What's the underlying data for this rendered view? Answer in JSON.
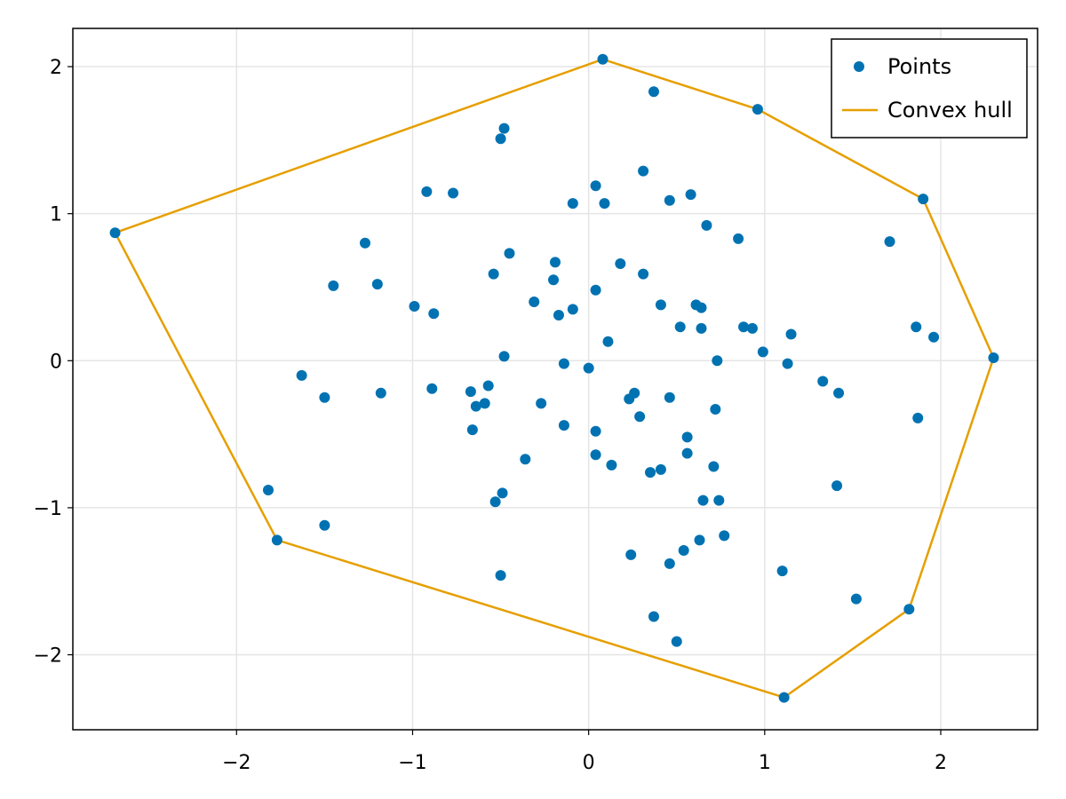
{
  "chart_data": {
    "type": "scatter",
    "title": "",
    "xlabel": "",
    "ylabel": "",
    "xlim": [
      -2.93,
      2.55
    ],
    "ylim": [
      -2.51,
      2.26
    ],
    "xticks": [
      -2,
      -1,
      0,
      1,
      2
    ],
    "yticks": [
      -2,
      -1,
      0,
      1,
      2
    ],
    "xtick_labels": [
      "−2",
      "−1",
      "0",
      "1",
      "2"
    ],
    "ytick_labels": [
      "−2",
      "−1",
      "0",
      "1",
      "2"
    ],
    "grid": true,
    "legend_position": "top-right",
    "colors": {
      "points": "#0072b2",
      "hull": "#e69f00"
    },
    "series": [
      {
        "name": "Points",
        "kind": "scatter",
        "points": [
          [
            0.08,
            2.05
          ],
          [
            0.37,
            1.83
          ],
          [
            0.96,
            1.71
          ],
          [
            -0.48,
            1.58
          ],
          [
            -0.5,
            1.51
          ],
          [
            0.31,
            1.29
          ],
          [
            0.04,
            1.19
          ],
          [
            -0.92,
            1.15
          ],
          [
            -0.77,
            1.14
          ],
          [
            0.58,
            1.13
          ],
          [
            -0.09,
            1.07
          ],
          [
            0.09,
            1.07
          ],
          [
            0.46,
            1.09
          ],
          [
            1.9,
            1.1
          ],
          [
            0.67,
            0.92
          ],
          [
            -2.69,
            0.87
          ],
          [
            0.85,
            0.83
          ],
          [
            1.71,
            0.81
          ],
          [
            -1.27,
            0.8
          ],
          [
            -0.45,
            0.73
          ],
          [
            -0.19,
            0.67
          ],
          [
            0.18,
            0.66
          ],
          [
            -0.54,
            0.59
          ],
          [
            0.31,
            0.59
          ],
          [
            -0.2,
            0.55
          ],
          [
            -1.45,
            0.51
          ],
          [
            -1.2,
            0.52
          ],
          [
            0.04,
            0.48
          ],
          [
            -0.31,
            0.4
          ],
          [
            0.41,
            0.38
          ],
          [
            0.61,
            0.38
          ],
          [
            0.64,
            0.36
          ],
          [
            -0.99,
            0.37
          ],
          [
            -0.09,
            0.35
          ],
          [
            -0.17,
            0.31
          ],
          [
            -0.88,
            0.32
          ],
          [
            0.52,
            0.23
          ],
          [
            0.64,
            0.22
          ],
          [
            0.88,
            0.23
          ],
          [
            0.93,
            0.22
          ],
          [
            1.86,
            0.23
          ],
          [
            1.15,
            0.18
          ],
          [
            1.96,
            0.16
          ],
          [
            0.11,
            0.13
          ],
          [
            0.99,
            0.06
          ],
          [
            2.3,
            0.02
          ],
          [
            -0.48,
            0.03
          ],
          [
            0.73,
            0.0
          ],
          [
            -0.14,
            -0.02
          ],
          [
            1.13,
            -0.02
          ],
          [
            0.0,
            -0.05
          ],
          [
            -1.63,
            -0.1
          ],
          [
            1.33,
            -0.14
          ],
          [
            -0.57,
            -0.17
          ],
          [
            -0.89,
            -0.19
          ],
          [
            -0.67,
            -0.21
          ],
          [
            -1.18,
            -0.22
          ],
          [
            1.42,
            -0.22
          ],
          [
            0.26,
            -0.22
          ],
          [
            0.23,
            -0.26
          ],
          [
            -1.5,
            -0.25
          ],
          [
            0.46,
            -0.25
          ],
          [
            -0.59,
            -0.29
          ],
          [
            -0.27,
            -0.29
          ],
          [
            -0.64,
            -0.31
          ],
          [
            0.72,
            -0.33
          ],
          [
            0.29,
            -0.38
          ],
          [
            1.87,
            -0.39
          ],
          [
            -0.14,
            -0.44
          ],
          [
            -0.66,
            -0.47
          ],
          [
            0.04,
            -0.48
          ],
          [
            0.56,
            -0.52
          ],
          [
            0.04,
            -0.64
          ],
          [
            0.56,
            -0.63
          ],
          [
            -0.36,
            -0.67
          ],
          [
            0.13,
            -0.71
          ],
          [
            0.71,
            -0.72
          ],
          [
            0.41,
            -0.74
          ],
          [
            0.35,
            -0.76
          ],
          [
            1.41,
            -0.85
          ],
          [
            -1.82,
            -0.88
          ],
          [
            -0.49,
            -0.9
          ],
          [
            -0.53,
            -0.96
          ],
          [
            0.65,
            -0.95
          ],
          [
            0.74,
            -0.95
          ],
          [
            -1.5,
            -1.12
          ],
          [
            0.77,
            -1.19
          ],
          [
            0.63,
            -1.22
          ],
          [
            -1.77,
            -1.22
          ],
          [
            0.54,
            -1.29
          ],
          [
            0.24,
            -1.32
          ],
          [
            0.46,
            -1.38
          ],
          [
            1.1,
            -1.43
          ],
          [
            -0.5,
            -1.46
          ],
          [
            1.52,
            -1.62
          ],
          [
            1.82,
            -1.69
          ],
          [
            0.37,
            -1.74
          ],
          [
            0.5,
            -1.91
          ],
          [
            1.11,
            -2.29
          ]
        ]
      },
      {
        "name": "Convex hull",
        "kind": "line",
        "points": [
          [
            0.08,
            2.05
          ],
          [
            0.96,
            1.71
          ],
          [
            1.9,
            1.1
          ],
          [
            2.3,
            0.02
          ],
          [
            1.82,
            -1.69
          ],
          [
            1.11,
            -2.29
          ],
          [
            -1.77,
            -1.22
          ],
          [
            -2.69,
            0.87
          ],
          [
            0.08,
            2.05
          ]
        ]
      }
    ]
  }
}
